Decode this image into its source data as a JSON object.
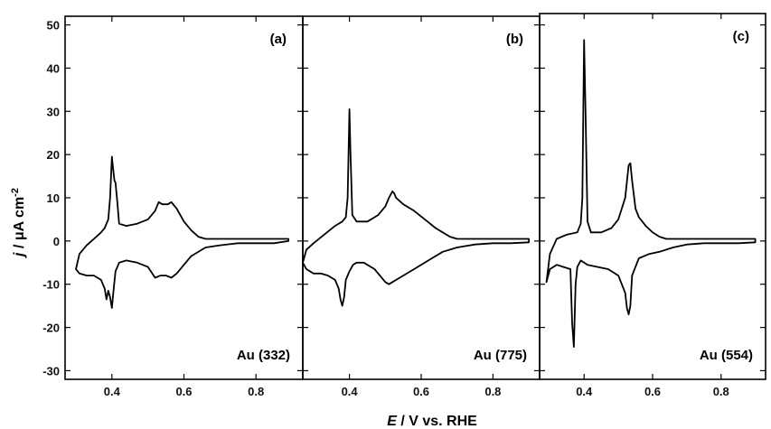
{
  "figure": {
    "xlabel_italic": "E",
    "xlabel_rest": " / V vs. RHE",
    "ylabel_italic": "j",
    "ylabel_rest": " / μA cm",
    "ylabel_sup": "-2"
  },
  "chart_data": [
    {
      "type": "line",
      "panel": "(a)",
      "title": "Au (332)",
      "xlim": [
        0.27,
        0.93
      ],
      "ylim": [
        -32,
        52
      ],
      "xticks": [
        0.4,
        0.6,
        0.8
      ],
      "yticks": [
        -30,
        -20,
        -10,
        0,
        10,
        20,
        30,
        40,
        50
      ],
      "series": [
        {
          "x": [
            0.3,
            0.31,
            0.33,
            0.35,
            0.37,
            0.38,
            0.39,
            0.395,
            0.4,
            0.403,
            0.407,
            0.41,
            0.415,
            0.42,
            0.44,
            0.47,
            0.5,
            0.52,
            0.53,
            0.54,
            0.555,
            0.565,
            0.58,
            0.6,
            0.62,
            0.64,
            0.66,
            0.7,
            0.75,
            0.8,
            0.85,
            0.89,
            0.89,
            0.85,
            0.8,
            0.75,
            0.7,
            0.66,
            0.62,
            0.6,
            0.58,
            0.565,
            0.55,
            0.535,
            0.52,
            0.5,
            0.47,
            0.44,
            0.42,
            0.41,
            0.405,
            0.4,
            0.395,
            0.39,
            0.385,
            0.38,
            0.37,
            0.35,
            0.33,
            0.31,
            0.3
          ],
          "y": [
            -6.5,
            -3,
            -1,
            0.5,
            2,
            3,
            5,
            10,
            19.5,
            17,
            14,
            13.5,
            9,
            4,
            3.5,
            4,
            5,
            7,
            9,
            8.5,
            8.5,
            9,
            7.5,
            4.5,
            2.5,
            1,
            0.5,
            0.5,
            0.5,
            0.5,
            0.5,
            0.5,
            0,
            -0.5,
            -0.5,
            -0.5,
            -1,
            -1.5,
            -3.5,
            -5.5,
            -7.5,
            -8.5,
            -8,
            -8,
            -8.5,
            -6,
            -5,
            -4.5,
            -5,
            -7,
            -11,
            -15.5,
            -13,
            -11.5,
            -13.5,
            -11,
            -9,
            -8,
            -8,
            -7.5,
            -6.5
          ]
        }
      ]
    },
    {
      "type": "line",
      "panel": "(b)",
      "title": "Au (775)",
      "xlim": [
        0.27,
        0.93
      ],
      "ylim": [
        -32,
        52
      ],
      "xticks": [
        0.4,
        0.6,
        0.8
      ],
      "yticks": [
        -30,
        -20,
        -10,
        0,
        10,
        20,
        30,
        40,
        50
      ],
      "series": [
        {
          "x": [
            0.27,
            0.28,
            0.3,
            0.33,
            0.36,
            0.38,
            0.39,
            0.395,
            0.4,
            0.403,
            0.408,
            0.42,
            0.45,
            0.48,
            0.5,
            0.51,
            0.52,
            0.525,
            0.53,
            0.55,
            0.58,
            0.61,
            0.64,
            0.66,
            0.68,
            0.7,
            0.75,
            0.8,
            0.85,
            0.9,
            0.9,
            0.85,
            0.8,
            0.75,
            0.7,
            0.66,
            0.62,
            0.58,
            0.55,
            0.52,
            0.51,
            0.5,
            0.47,
            0.44,
            0.42,
            0.41,
            0.4,
            0.39,
            0.385,
            0.38,
            0.375,
            0.37,
            0.36,
            0.34,
            0.32,
            0.3,
            0.28,
            0.27
          ],
          "y": [
            -5,
            -2,
            -0.5,
            1.5,
            3.5,
            4.5,
            5.5,
            10,
            30.5,
            20,
            6,
            4.5,
            4.5,
            6,
            8,
            10,
            11.5,
            11,
            10,
            8.5,
            7,
            5,
            3,
            2,
            1,
            0.5,
            0.5,
            0.5,
            0.5,
            0.5,
            -0.3,
            -0.5,
            -0.5,
            -0.8,
            -1.5,
            -2.5,
            -4.5,
            -6.5,
            -8,
            -9.5,
            -10,
            -9.5,
            -6.5,
            -5,
            -5,
            -5.5,
            -7,
            -9,
            -13,
            -15,
            -13.5,
            -11,
            -9,
            -8,
            -7.5,
            -7.5,
            -6.5,
            -5
          ]
        }
      ]
    },
    {
      "type": "line",
      "panel": "(c)",
      "title": "Au (554)",
      "xlim": [
        0.27,
        0.93
      ],
      "ylim": [
        -32,
        52
      ],
      "xticks": [
        0.4,
        0.6,
        0.8
      ],
      "yticks": [
        -30,
        -20,
        -10,
        0,
        10,
        20,
        30,
        40,
        50
      ],
      "series": [
        {
          "x": [
            0.29,
            0.3,
            0.32,
            0.35,
            0.38,
            0.39,
            0.395,
            0.4,
            0.404,
            0.41,
            0.42,
            0.45,
            0.48,
            0.5,
            0.52,
            0.53,
            0.535,
            0.54,
            0.55,
            0.56,
            0.58,
            0.6,
            0.62,
            0.64,
            0.66,
            0.7,
            0.75,
            0.8,
            0.85,
            0.9,
            0.9,
            0.85,
            0.8,
            0.75,
            0.7,
            0.66,
            0.62,
            0.59,
            0.56,
            0.54,
            0.535,
            0.53,
            0.525,
            0.52,
            0.5,
            0.47,
            0.44,
            0.41,
            0.4,
            0.39,
            0.38,
            0.375,
            0.37,
            0.365,
            0.36,
            0.34,
            0.32,
            0.3,
            0.29
          ],
          "y": [
            -9.5,
            -3,
            0.5,
            1.5,
            2,
            4,
            10,
            46.5,
            30,
            4.5,
            2,
            2,
            3,
            5,
            10,
            17.5,
            18,
            14,
            7.5,
            5.5,
            3.5,
            2,
            1,
            0.5,
            0.5,
            0.5,
            0.5,
            0.5,
            0.5,
            0.5,
            -0.3,
            -0.5,
            -0.5,
            -0.5,
            -0.8,
            -1.5,
            -2.5,
            -3,
            -4,
            -8,
            -15,
            -17,
            -15.5,
            -12,
            -8,
            -6.5,
            -6,
            -5.5,
            -5,
            -4.5,
            -6,
            -10,
            -24.5,
            -19,
            -6.5,
            -6,
            -5.5,
            -6.5,
            -9.5
          ]
        }
      ]
    }
  ]
}
